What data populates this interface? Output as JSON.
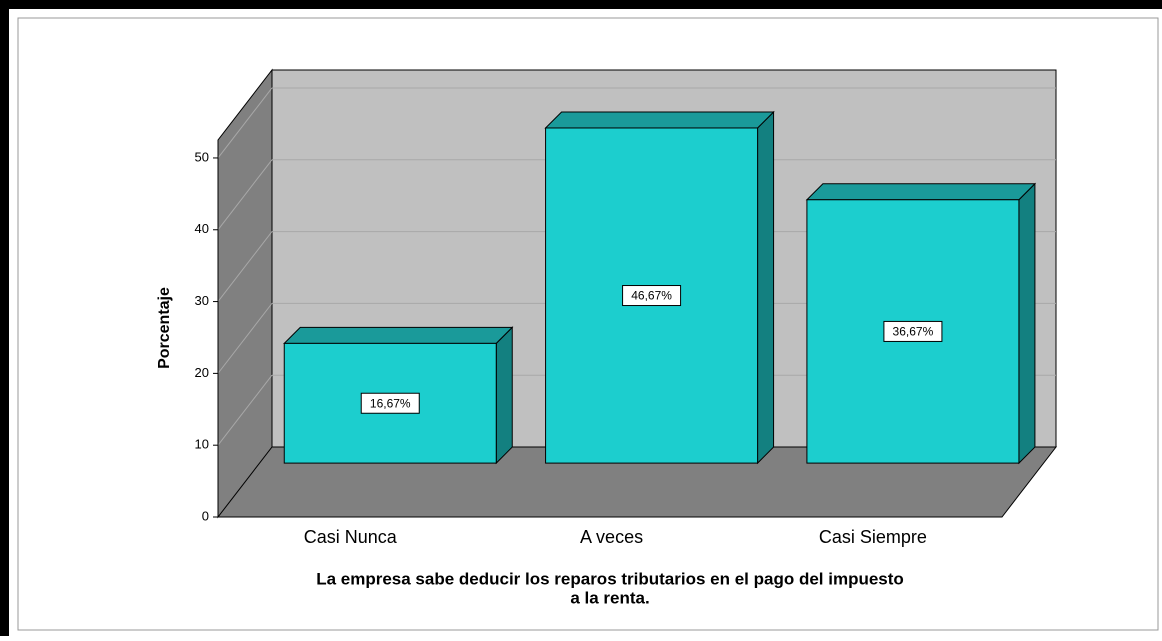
{
  "chart_data": {
    "type": "bar3d",
    "categories": [
      "Casi Nunca",
      "A veces",
      "Casi Siempre"
    ],
    "values": [
      16.67,
      46.67,
      36.67
    ],
    "value_labels": [
      "16,67%",
      "46,67%",
      "36,67%"
    ],
    "color": "#1ccece",
    "ylabel": "Porcentaje",
    "xlabel": [
      "La empresa sabe deducir los reparos tributarios en el pago del impuesto",
      "a la renta."
    ],
    "ylim": [
      0,
      52.5
    ],
    "yticks": [
      0,
      10,
      20,
      30,
      40,
      50
    ],
    "grid": true
  }
}
